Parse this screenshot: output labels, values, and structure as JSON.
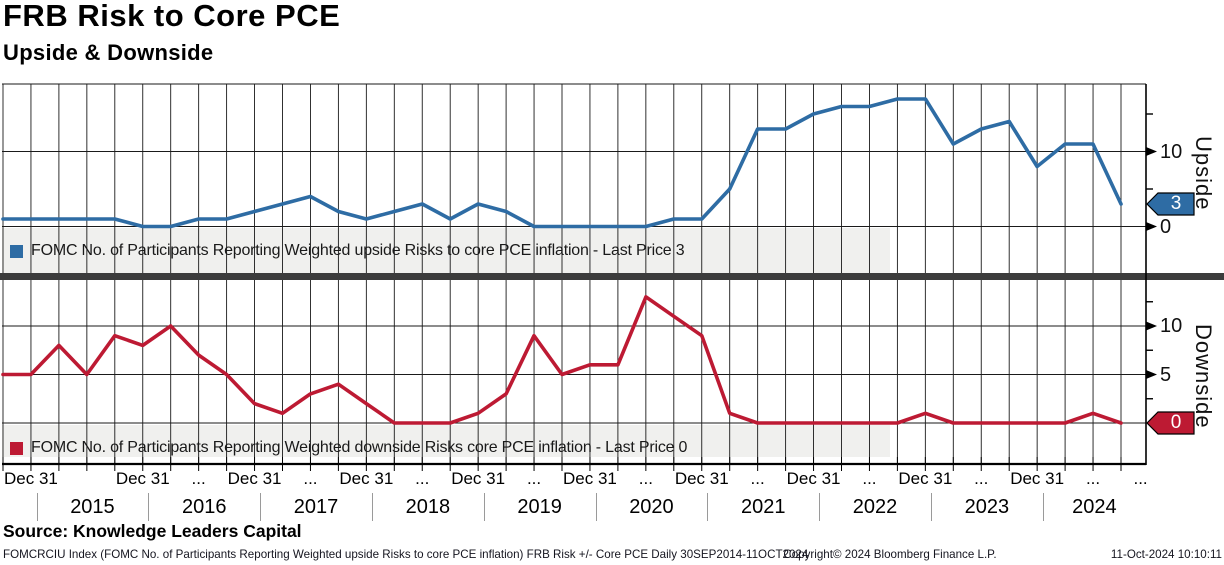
{
  "header": {
    "title": "FRB Risk to Core PCE",
    "subtitle": "Upside & Downside"
  },
  "source_line": "Source: Knowledge Leaders Capital",
  "footer": {
    "left": "FOMCRCIU Index (FOMC No. of Participants Reporting Weighted upside Risks to core PCE inflation) FRB Risk +/- Core PCE  Daily 30SEP2014-11OCT2024",
    "center": "Copyright© 2024 Bloomberg Finance L.P.",
    "right": "11-Oct-2024 10:10:11"
  },
  "colors": {
    "upside": "#2e6ca4",
    "downside": "#bd1a33",
    "legend_band": "#f0f0ee",
    "divider": "#3c3c3c",
    "grid": "#1a1a1a",
    "axis": "#000000",
    "year_separator": "#9a9a9a"
  },
  "x_axis": {
    "tick_labels": [
      "Dec 31",
      "Dec 31",
      "...",
      "Dec 31",
      "...",
      "Dec 31",
      "...",
      "Dec 31",
      "...",
      "Dec 31",
      "...",
      "Dec 31",
      "...",
      "Dec 31",
      "...",
      "Dec 31",
      "...",
      "Dec 31",
      "...",
      "..."
    ],
    "years": [
      "2015",
      "2016",
      "2017",
      "2018",
      "2019",
      "2020",
      "2021",
      "2022",
      "2023",
      "2024"
    ]
  },
  "chart_data": [
    {
      "type": "line",
      "panel": "upside",
      "title": "Upside",
      "legend": "FOMC No. of Participants Reporting Weighted upside Risks to core PCE inflation - Last Price 3",
      "last_price": 3,
      "ylim": [
        0,
        19
      ],
      "gridlines_y": [
        0,
        10
      ],
      "tick_labels_y": [
        10,
        0
      ],
      "minor_ticks_y": [
        5,
        15
      ],
      "x": [
        "2014-09",
        "2014-12",
        "2015-03",
        "2015-06",
        "2015-09",
        "2015-12",
        "2016-03",
        "2016-06",
        "2016-09",
        "2016-12",
        "2017-03",
        "2017-06",
        "2017-09",
        "2017-12",
        "2018-03",
        "2018-06",
        "2018-09",
        "2018-12",
        "2019-03",
        "2019-06",
        "2019-09",
        "2019-12",
        "2020-03",
        "2020-06",
        "2020-09",
        "2020-12",
        "2021-03",
        "2021-06",
        "2021-09",
        "2021-12",
        "2022-03",
        "2022-06",
        "2022-09",
        "2022-12",
        "2023-03",
        "2023-06",
        "2023-09",
        "2023-12",
        "2024-03",
        "2024-06",
        "2024-09"
      ],
      "values": [
        1,
        1,
        1,
        1,
        1,
        0,
        0,
        1,
        1,
        2,
        3,
        4,
        2,
        1,
        2,
        3,
        1,
        3,
        2,
        0,
        0,
        0,
        0,
        0,
        1,
        1,
        5,
        13,
        13,
        15,
        16,
        16,
        17,
        17,
        11,
        13,
        14,
        8,
        11,
        11,
        3
      ]
    },
    {
      "type": "line",
      "panel": "downside",
      "title": "Downside",
      "legend": "FOMC No. of Participants Reporting Weighted downside Risks core PCE inflation - Last Price 0",
      "last_price": 0,
      "ylim": [
        0,
        15
      ],
      "gridlines_y": [
        0,
        5,
        10
      ],
      "tick_labels_y": [
        10,
        5
      ],
      "minor_ticks_y": [
        2.5,
        7.5,
        12.5
      ],
      "x": [
        "2014-09",
        "2014-12",
        "2015-03",
        "2015-06",
        "2015-09",
        "2015-12",
        "2016-03",
        "2016-06",
        "2016-09",
        "2016-12",
        "2017-03",
        "2017-06",
        "2017-09",
        "2017-12",
        "2018-03",
        "2018-06",
        "2018-09",
        "2018-12",
        "2019-03",
        "2019-06",
        "2019-09",
        "2019-12",
        "2020-03",
        "2020-06",
        "2020-09",
        "2020-12",
        "2021-03",
        "2021-06",
        "2021-09",
        "2021-12",
        "2022-03",
        "2022-06",
        "2022-09",
        "2022-12",
        "2023-03",
        "2023-06",
        "2023-09",
        "2023-12",
        "2024-03",
        "2024-06",
        "2024-09"
      ],
      "values": [
        5,
        5,
        8,
        5,
        9,
        8,
        10,
        7,
        5,
        2,
        1,
        3,
        4,
        2,
        0,
        0,
        0,
        1,
        3,
        9,
        5,
        6,
        6,
        13,
        11,
        9,
        1,
        0,
        0,
        0,
        0,
        0,
        0,
        1,
        0,
        0,
        0,
        0,
        0,
        1,
        0
      ]
    }
  ]
}
